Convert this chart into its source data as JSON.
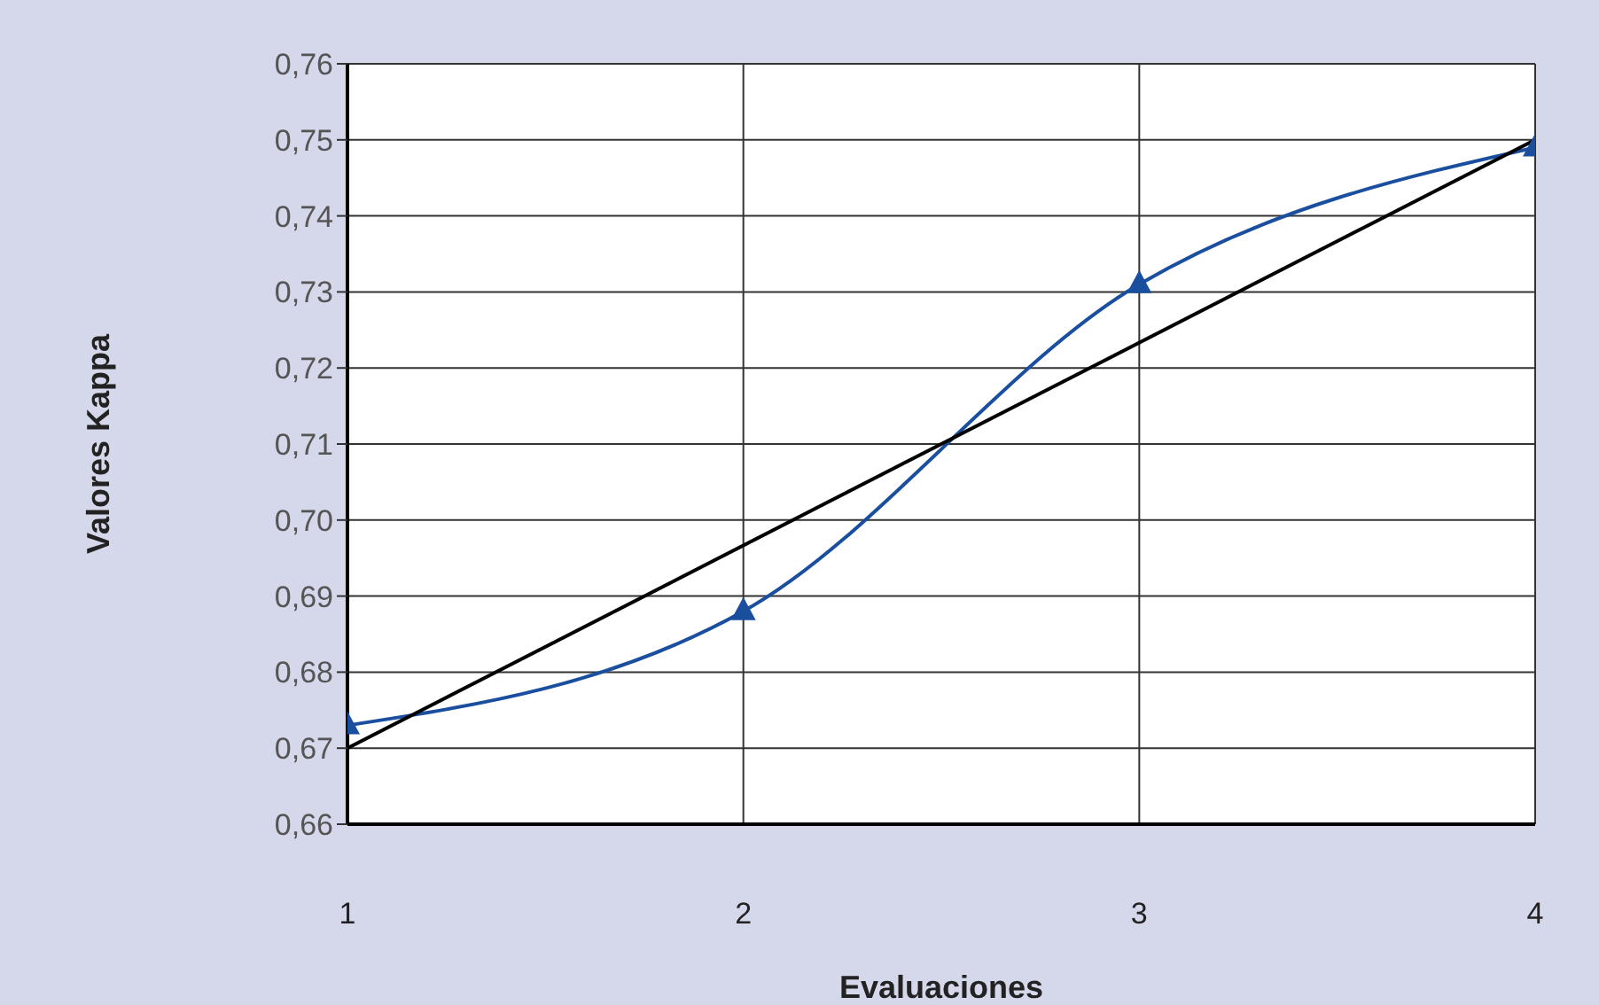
{
  "chart_data": {
    "type": "line",
    "xlabel": "Evaluaciones",
    "ylabel": "Valores Kappa",
    "x": [
      1,
      2,
      3,
      4
    ],
    "series": [
      {
        "color": "#1a4fa0",
        "values": [
          0.673,
          0.688,
          0.731,
          0.749
        ],
        "marker": "triangle"
      },
      {
        "type": "line",
        "color": "#000000",
        "x": [
          1,
          4
        ],
        "values": [
          0.67,
          0.75
        ],
        "marker": "none"
      }
    ],
    "xlim": [
      1,
      4
    ],
    "xticks": [
      1,
      2,
      3,
      4
    ],
    "ylim": [
      0.66,
      0.76
    ],
    "yticks": [
      {
        "value": 0.66,
        "label": "0,66"
      },
      {
        "value": 0.67,
        "label": "0,67"
      },
      {
        "value": 0.68,
        "label": "0,68"
      },
      {
        "value": 0.69,
        "label": "0,69"
      },
      {
        "value": 0.7,
        "label": "0,70"
      },
      {
        "value": 0.71,
        "label": "0,71"
      },
      {
        "value": 0.72,
        "label": "0,72"
      },
      {
        "value": 0.73,
        "label": "0,73"
      },
      {
        "value": 0.74,
        "label": "0,74"
      },
      {
        "value": 0.75,
        "label": "0,75"
      },
      {
        "value": 0.76,
        "label": "0,76"
      }
    ],
    "grid": true,
    "legend": false
  }
}
